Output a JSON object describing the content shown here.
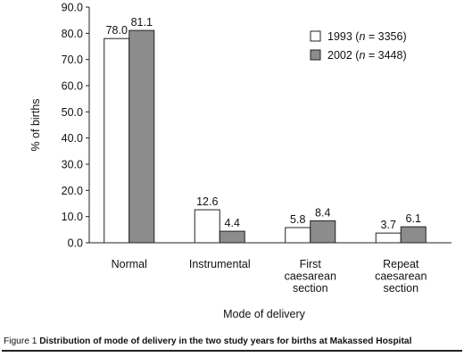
{
  "chart_data": {
    "type": "bar",
    "ylabel": "% of births",
    "xlabel": "Mode of delivery",
    "ylim": [
      0,
      90
    ],
    "yticks": [
      "0.0",
      "10.0",
      "20.0",
      "30.0",
      "40.0",
      "50.0",
      "60.0",
      "70.0",
      "80.0",
      "90.0"
    ],
    "grid": false,
    "legend_position": "top-right",
    "categories": [
      [
        "Normal"
      ],
      [
        "Instrumental"
      ],
      [
        "First",
        "caesarean",
        "section"
      ],
      [
        "Repeat",
        "caesarean",
        "section"
      ]
    ],
    "series": [
      {
        "name_main": "1993 (",
        "name_n": "n",
        "name_rest": " = 3356)",
        "color": "#ffffff",
        "values": [
          78.0,
          12.6,
          5.8,
          3.7
        ],
        "labels": [
          "78.0",
          "12.6",
          "5.8",
          "3.7"
        ]
      },
      {
        "name_main": "2002 (",
        "name_n": "n",
        "name_rest": " = 3448)",
        "color": "#8c8c8c",
        "values": [
          81.1,
          4.4,
          8.4,
          6.1
        ],
        "labels": [
          "81.1",
          "4.4",
          "8.4",
          "6.1"
        ]
      }
    ]
  },
  "caption": {
    "prefix": "Figure 1 ",
    "text": "Distribution of mode of delivery in the two study years for births at Makassed Hospital"
  }
}
